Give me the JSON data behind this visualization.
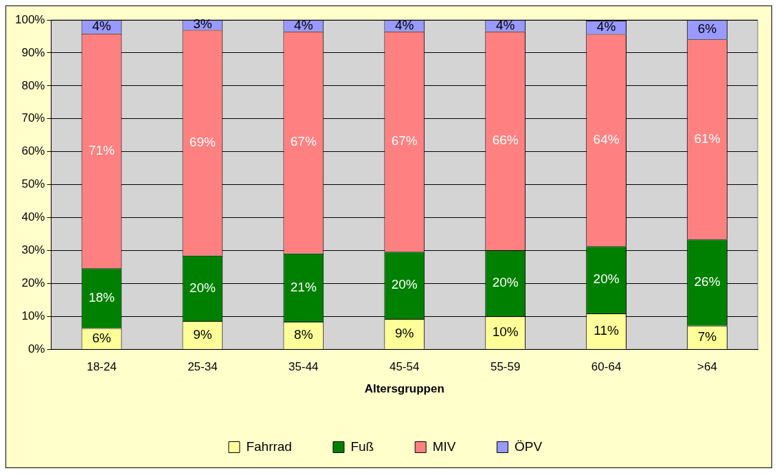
{
  "chart_data": {
    "type": "bar",
    "stacked": true,
    "xlabel": "Altersgruppen",
    "categories": [
      "18-24",
      "25-34",
      "35-44",
      "45-54",
      "55-59",
      "60-64",
      ">64"
    ],
    "series": [
      {
        "name": "Fahrrad",
        "color": "#ffff99",
        "values": [
          6.4,
          8.6,
          8.4,
          9.2,
          10.0,
          10.9,
          7.2
        ],
        "value_labels": [
          "6%",
          "9%",
          "8%",
          "9%",
          "10%",
          "11%",
          "7%"
        ]
      },
      {
        "name": "Fuß",
        "color": "#008000",
        "values": [
          18.2,
          19.9,
          20.7,
          20.4,
          20.1,
          20.4,
          26.2
        ],
        "value_labels": [
          "18%",
          "20%",
          "21%",
          "20%",
          "20%",
          "20%",
          "26%"
        ]
      },
      {
        "name": "MIV",
        "color": "#ff8080",
        "values": [
          71.3,
          68.5,
          67.4,
          66.9,
          66.4,
          64.4,
          60.7
        ],
        "value_labels": [
          "71%",
          "69%",
          "67%",
          "67%",
          "66%",
          "64%",
          "61%"
        ]
      },
      {
        "name": "ÖPV",
        "color": "#9999ff",
        "values": [
          4.1,
          3.0,
          3.5,
          3.5,
          3.5,
          4.1,
          5.9
        ],
        "value_labels": [
          "4%",
          "3%",
          "4%",
          "4%",
          "4%",
          "4%",
          "6%"
        ]
      }
    ],
    "ylim": [
      0,
      100
    ],
    "yticks": [
      {
        "value": 0,
        "label": "0%"
      },
      {
        "value": 10,
        "label": "10%"
      },
      {
        "value": 20,
        "label": "20%"
      },
      {
        "value": 30,
        "label": "30%"
      },
      {
        "value": 40,
        "label": "40%"
      },
      {
        "value": 50,
        "label": "50%"
      },
      {
        "value": 60,
        "label": "60%"
      },
      {
        "value": 70,
        "label": "70%"
      },
      {
        "value": 80,
        "label": "80%"
      },
      {
        "value": 90,
        "label": "90%"
      },
      {
        "value": 100,
        "label": "100%"
      }
    ],
    "grid": "y",
    "legend": "bottom"
  }
}
